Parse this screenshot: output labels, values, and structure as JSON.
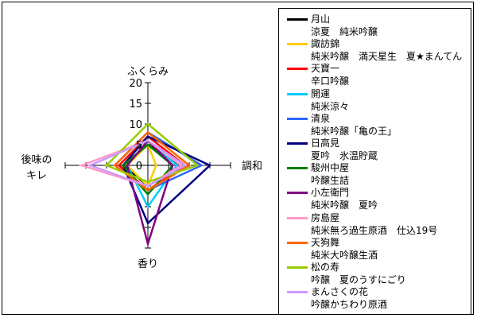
{
  "chart_data": {
    "type": "radar",
    "axes": [
      "ふくらみ",
      "調和",
      "香り",
      "後味のキレ"
    ],
    "axis_label_lines": {
      "ふくらみ": [
        "ふくらみ"
      ],
      "調和": [
        "調和"
      ],
      "香り": [
        "香り"
      ],
      "後味のキレ": [
        "後味の",
        "キレ"
      ]
    },
    "rlim": [
      0,
      20
    ],
    "ticks": [
      "0",
      "5",
      "10",
      "15",
      "20"
    ],
    "series": [
      {
        "name": "月山",
        "product": "涼夏　純米吟醸",
        "color": "#000000",
        "values": [
          5,
          8,
          5,
          6
        ]
      },
      {
        "name": "諏訪錦",
        "product": "純米吟醸　満天星生　夏★まんてん",
        "color": "#ffcc00",
        "values": [
          5,
          2,
          5,
          5
        ]
      },
      {
        "name": "天寶一",
        "product": "辛口吟醸",
        "color": "#ff0000",
        "values": [
          7,
          9,
          6,
          7
        ]
      },
      {
        "name": "開運",
        "product": "純米涼々",
        "color": "#00ccff",
        "values": [
          6,
          7,
          10,
          5
        ]
      },
      {
        "name": "清泉",
        "product": "純米吟醸「亀の王」",
        "color": "#3366ff",
        "values": [
          8,
          13,
          6,
          8
        ]
      },
      {
        "name": "日高見",
        "product": "夏吟　氷温貯蔵",
        "color": "#000080",
        "values": [
          7,
          15,
          14,
          6
        ]
      },
      {
        "name": "駿州中屋",
        "product": "吟醸生詰",
        "color": "#008000",
        "values": [
          5,
          6,
          7,
          6
        ]
      },
      {
        "name": "小左衛門",
        "product": "純米吟醸　夏吟",
        "color": "#800080",
        "values": [
          6,
          6,
          19,
          5
        ]
      },
      {
        "name": "房島屋",
        "product": "純米無ろ過生原酒　仕込19号",
        "color": "#ff99cc",
        "values": [
          6,
          8,
          5,
          16
        ]
      },
      {
        "name": "天狗舞",
        "product": "純米大吟醸生酒",
        "color": "#ff6600",
        "values": [
          8,
          10,
          6,
          8
        ]
      },
      {
        "name": "松の寿",
        "product": "吟醸　夏のうすにごり",
        "color": "#99cc00",
        "values": [
          10,
          12,
          4,
          10
        ]
      },
      {
        "name": "まんさくの花",
        "product": "吟醸かちわり原酒",
        "color": "#cc99ff",
        "values": [
          6,
          9,
          5,
          14
        ]
      }
    ]
  }
}
